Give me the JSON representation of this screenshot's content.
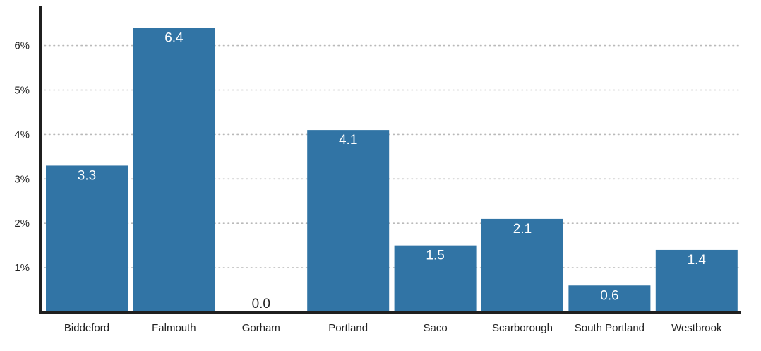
{
  "chart_data": {
    "type": "bar",
    "categories": [
      "Biddeford",
      "Falmouth",
      "Gorham",
      "Portland",
      "Saco",
      "Scarborough",
      "South Portland",
      "Westbrook"
    ],
    "values": [
      3.3,
      6.4,
      0.0,
      4.1,
      1.5,
      2.1,
      0.6,
      1.4
    ],
    "data_labels": [
      "3.3",
      "6.4",
      "0.0",
      "4.1",
      "1.5",
      "2.1",
      "0.6",
      "1.4"
    ],
    "y_ticks": [
      1,
      2,
      3,
      4,
      5,
      6
    ],
    "y_tick_labels": [
      "1%",
      "2%",
      "3%",
      "4%",
      "5%",
      "6%"
    ],
    "ylim": [
      0,
      6.9
    ],
    "title": "",
    "xlabel": "",
    "ylabel": "",
    "grid": true,
    "grid_style": "dotted",
    "legend": "none",
    "colors": {
      "bar": "#3174a5",
      "axis": "#1f1f1f",
      "grid": "#b9b9b9",
      "label_on_bar": "#ffffff",
      "label_above_bar": "#222222"
    }
  }
}
